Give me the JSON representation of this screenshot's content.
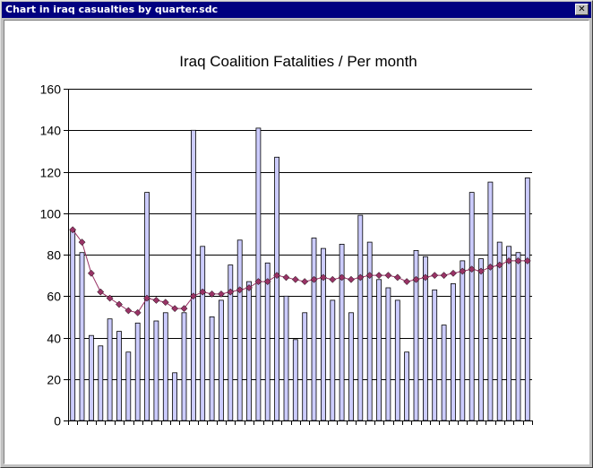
{
  "window": {
    "title": "Chart in iraq casualties by quarter.sdc",
    "close_glyph": "✕"
  },
  "chart_data": {
    "type": "bar",
    "title": "Iraq Coalition Fatalities / Per month",
    "xlabel": "",
    "ylabel": "",
    "ylim": [
      0,
      160
    ],
    "yticks": [
      0,
      20,
      40,
      60,
      80,
      100,
      120,
      140,
      160
    ],
    "grid": true,
    "legend": "none",
    "bar_color": "#ccccff",
    "line_color": "#993366",
    "series": [
      {
        "type": "bar",
        "values": [
          92,
          81,
          41,
          36,
          49,
          43,
          33,
          47,
          110,
          48,
          52,
          23,
          52,
          140,
          84,
          50,
          58,
          75,
          87,
          67,
          141,
          76,
          127,
          60,
          39,
          52,
          88,
          83,
          58,
          85,
          52,
          99,
          86,
          68,
          64,
          58,
          33,
          82,
          79,
          63,
          46,
          66,
          77,
          110,
          78,
          115,
          86,
          84,
          81,
          117
        ]
      },
      {
        "type": "line",
        "values": [
          92,
          86,
          71,
          62,
          59,
          56,
          53,
          52,
          59,
          58,
          57,
          54,
          54,
          60,
          62,
          61,
          61,
          62,
          63,
          64,
          67,
          67,
          70,
          69,
          68,
          67,
          68,
          69,
          68,
          69,
          68,
          69,
          70,
          70,
          70,
          69,
          67,
          68,
          69,
          70,
          70,
          71,
          72,
          73,
          72,
          74,
          75,
          77,
          77,
          77
        ]
      }
    ]
  }
}
